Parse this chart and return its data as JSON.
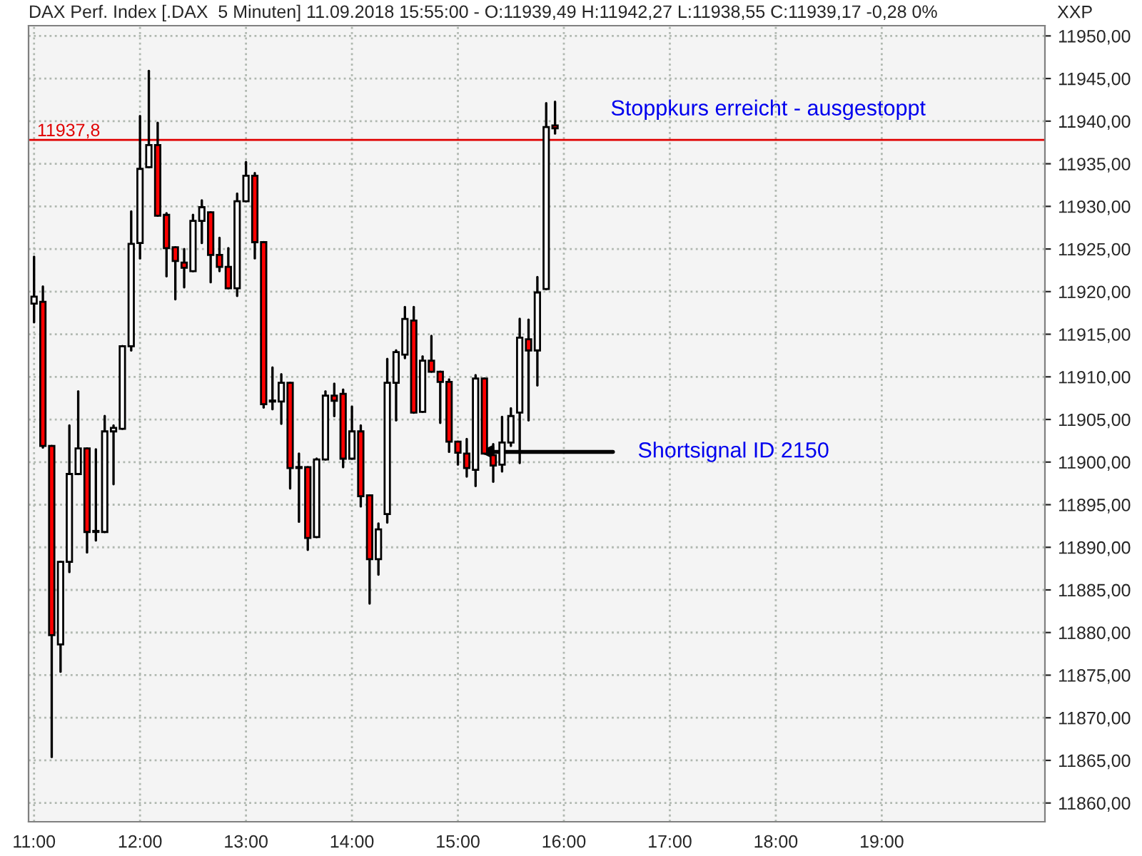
{
  "chart_data": {
    "type": "candlestick",
    "title": "DAX Perf. Index [.DAX  5 Minuten] 11.09.2018 15:55:00 - O:11939,49 H:11942,27 L:11938,55 C:11939,17 -0,28 0%",
    "ylabel": "XXP",
    "x": [
      11.0,
      11.0833,
      11.1667,
      11.25,
      11.3333,
      11.4167,
      11.5,
      11.5833,
      11.6667,
      11.75,
      11.8333,
      11.9167,
      12.0,
      12.0833,
      12.1667,
      12.25,
      12.3333,
      12.4167,
      12.5,
      12.5833,
      12.6667,
      12.75,
      12.8333,
      12.9167,
      13.0,
      13.0833,
      13.1667,
      13.25,
      13.3333,
      13.4167,
      13.5,
      13.5833,
      13.6667,
      13.75,
      13.8333,
      13.9167,
      14.0,
      14.0833,
      14.1667,
      14.25,
      14.3333,
      14.4167,
      14.5,
      14.5833,
      14.6667,
      14.75,
      14.8333,
      14.9167,
      15.0,
      15.0833,
      15.1667,
      15.25,
      15.3333,
      15.4167,
      15.5,
      15.5833,
      15.6667,
      15.75,
      15.8333,
      15.9167
    ],
    "ohlc": [
      [
        11918.6,
        11924.1,
        11916.4,
        11919.4
      ],
      [
        11918.8,
        11920.6,
        11901.7,
        11901.9
      ],
      [
        11901.9,
        11901.9,
        11865.4,
        11879.7
      ],
      [
        11878.6,
        11888.3,
        11875.4,
        11888.3
      ],
      [
        11888.3,
        11904.3,
        11887.1,
        11898.6
      ],
      [
        11898.6,
        11908.3,
        11898.6,
        11901.6
      ],
      [
        11901.6,
        11901.6,
        11889.4,
        11891.8
      ],
      [
        11891.8,
        11901.5,
        11890.8,
        11891.8
      ],
      [
        11891.8,
        11905.4,
        11891.8,
        11903.6
      ],
      [
        11903.6,
        11904.3,
        11897.4,
        11904.0
      ],
      [
        11903.9,
        11913.6,
        11903.9,
        11913.6
      ],
      [
        11913.6,
        11929.4,
        11913.1,
        11925.6
      ],
      [
        11925.7,
        11940.6,
        11923.9,
        11934.4
      ],
      [
        11934.6,
        11945.9,
        11934.6,
        11937.2
      ],
      [
        11937.2,
        11939.8,
        11928.9,
        11928.9
      ],
      [
        11929.0,
        11929.2,
        11921.8,
        11925.1
      ],
      [
        11925.2,
        11925.2,
        11919.1,
        11923.6
      ],
      [
        11923.4,
        11925.0,
        11920.5,
        11922.8
      ],
      [
        11922.4,
        11929.0,
        11922.4,
        11928.3
      ],
      [
        11928.3,
        11930.7,
        11925.7,
        11929.9
      ],
      [
        11929.3,
        11929.3,
        11921.1,
        11924.3
      ],
      [
        11924.3,
        11926.3,
        11922.4,
        11922.9
      ],
      [
        11922.9,
        11925.1,
        11920.4,
        11920.4
      ],
      [
        11920.4,
        11931.5,
        11919.5,
        11930.6
      ],
      [
        11930.6,
        11935.2,
        11930.6,
        11933.6
      ],
      [
        11933.6,
        11933.9,
        11923.9,
        11925.8
      ],
      [
        11925.8,
        11925.8,
        11906.4,
        11906.8
      ],
      [
        11907.1,
        11911.1,
        11906.2,
        11907.1
      ],
      [
        11907.1,
        11910.3,
        11904.5,
        11909.3
      ],
      [
        11909.3,
        11909.3,
        11896.9,
        11899.3
      ],
      [
        11899.3,
        11901.0,
        11893.0,
        11899.3
      ],
      [
        11899.4,
        11899.4,
        11889.7,
        11891.1
      ],
      [
        11891.2,
        11900.4,
        11891.2,
        11900.3
      ],
      [
        11900.3,
        11908.3,
        11900.3,
        11907.8
      ],
      [
        11907.8,
        11909.2,
        11905.4,
        11907.2
      ],
      [
        11908.0,
        11908.5,
        11899.4,
        11900.4
      ],
      [
        11900.4,
        11906.5,
        11900.4,
        11903.6
      ],
      [
        11903.6,
        11904.3,
        11894.8,
        11896.0
      ],
      [
        11896.1,
        11896.1,
        11883.4,
        11888.6
      ],
      [
        11888.6,
        11892.8,
        11886.8,
        11892.1
      ],
      [
        11893.9,
        11912.1,
        11892.9,
        11909.3
      ],
      [
        11909.3,
        11913.1,
        11904.9,
        11912.9
      ],
      [
        11912.6,
        11918.2,
        11912.2,
        11916.8
      ],
      [
        11916.6,
        11918.2,
        11905.8,
        11905.8
      ],
      [
        11905.9,
        11912.4,
        11905.9,
        11911.9
      ],
      [
        11911.9,
        11914.8,
        11910.6,
        11910.6
      ],
      [
        11910.6,
        11910.6,
        11904.6,
        11909.4
      ],
      [
        11909.4,
        11909.7,
        11901.2,
        11902.4
      ],
      [
        11902.4,
        11902.4,
        11899.7,
        11901.1
      ],
      [
        11901.0,
        11902.7,
        11898.3,
        11899.3
      ],
      [
        11899.1,
        11910.2,
        11897.2,
        11909.8
      ],
      [
        11909.8,
        11909.8,
        11901.0,
        11901.0
      ],
      [
        11900.8,
        11902.1,
        11897.7,
        11899.6
      ],
      [
        11899.7,
        11905.3,
        11898.9,
        11902.3
      ],
      [
        11902.3,
        11906.3,
        11901.9,
        11905.4
      ],
      [
        11905.8,
        11916.8,
        11899.9,
        11914.6
      ],
      [
        11914.4,
        11916.7,
        11904.9,
        11913.1
      ],
      [
        11913.1,
        11921.7,
        11909.0,
        11919.9
      ],
      [
        11920.3,
        11942.1,
        11920.3,
        11939.3
      ],
      [
        11939.49,
        11942.27,
        11938.55,
        11939.17
      ]
    ],
    "colors": [
      "#ffffff",
      "#ff0000",
      "#ff0000",
      "#ffffff",
      "#ffffff",
      "#ffffff",
      "#ff0000",
      "#ffffff",
      "#ffffff",
      "#ffffff",
      "#ffffff",
      "#ffffff",
      "#ffffff",
      "#ffffff",
      "#ff0000",
      "#ff0000",
      "#ff0000",
      "#ff0000",
      "#ffffff",
      "#ffffff",
      "#ff0000",
      "#ff0000",
      "#ff0000",
      "#ffffff",
      "#ffffff",
      "#ff0000",
      "#ff0000",
      "#ffffff",
      "#ffffff",
      "#ff0000",
      "#ffffff",
      "#ff0000",
      "#ffffff",
      "#ffffff",
      "#ff0000",
      "#ff0000",
      "#ffffff",
      "#ff0000",
      "#ff0000",
      "#ffffff",
      "#ffffff",
      "#ffffff",
      "#ffffff",
      "#ff0000",
      "#ffffff",
      "#ff0000",
      "#ff0000",
      "#ff0000",
      "#ff0000",
      "#ff0000",
      "#ffffff",
      "#ff0000",
      "#ff0000",
      "#ffffff",
      "#ffffff",
      "#ffffff",
      "#ff0000",
      "#ffffff",
      "#ffffff",
      "#ff0000"
    ],
    "xlim": [
      10.948,
      20.54
    ],
    "xticks": [
      {
        "value": 11,
        "label": "11:00"
      },
      {
        "value": 12,
        "label": "12:00"
      },
      {
        "value": 13,
        "label": "13:00"
      },
      {
        "value": 14,
        "label": "14:00"
      },
      {
        "value": 15,
        "label": "15:00"
      },
      {
        "value": 16,
        "label": "16:00"
      },
      {
        "value": 17,
        "label": "17:00"
      },
      {
        "value": 18,
        "label": "18:00"
      },
      {
        "value": 19,
        "label": "19:00"
      }
    ],
    "ylim": [
      11857.8,
      11951.2
    ],
    "yticks": [
      {
        "value": 11860,
        "label": "11860,00"
      },
      {
        "value": 11865,
        "label": "11865,00"
      },
      {
        "value": 11870,
        "label": "11870,00"
      },
      {
        "value": 11875,
        "label": "11875,00"
      },
      {
        "value": 11880,
        "label": "11880,00"
      },
      {
        "value": 11885,
        "label": "11885,00"
      },
      {
        "value": 11890,
        "label": "11890,00"
      },
      {
        "value": 11895,
        "label": "11895,00"
      },
      {
        "value": 11900,
        "label": "11900,00"
      },
      {
        "value": 11905,
        "label": "11905,00"
      },
      {
        "value": 11910,
        "label": "11910,00"
      },
      {
        "value": 11915,
        "label": "11915,00"
      },
      {
        "value": 11920,
        "label": "11920,00"
      },
      {
        "value": 11925,
        "label": "11925,00"
      },
      {
        "value": 11930,
        "label": "11930,00"
      },
      {
        "value": 11935,
        "label": "11935,00"
      },
      {
        "value": 11940,
        "label": "11940,00"
      },
      {
        "value": 11945,
        "label": "11945,00"
      },
      {
        "value": 11950,
        "label": "11950,00"
      }
    ],
    "grid": true,
    "ref_lines": [
      {
        "axis": "y",
        "value": 11937.8,
        "label": "11937,8",
        "color": "#e00000"
      }
    ],
    "annotations": [
      {
        "text": "Stoppkurs erreicht - ausgestoppt",
        "x": 15.9167,
        "y": 11942.27
      },
      {
        "text": "Shortsignal ID 2150",
        "x": 15.2,
        "y": 11901.2
      }
    ]
  }
}
